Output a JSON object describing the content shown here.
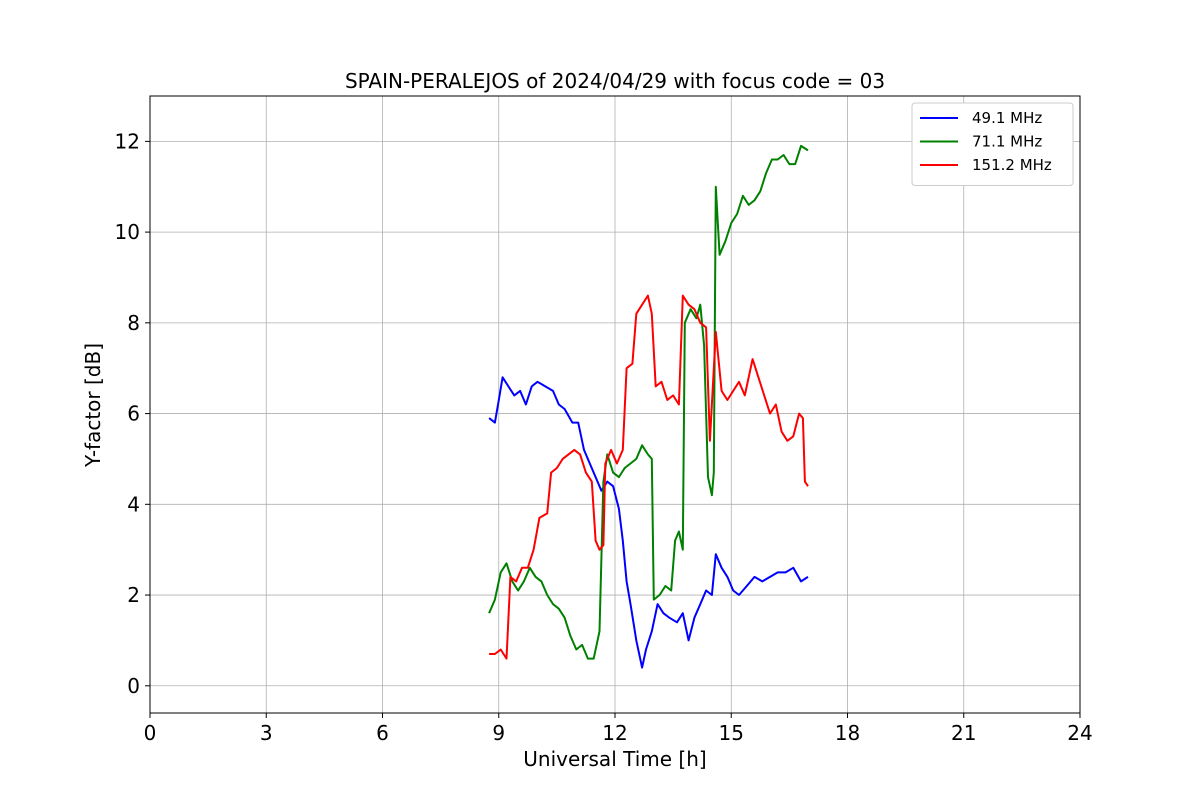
{
  "chart_data": {
    "type": "line",
    "title": "SPAIN-PERALEJOS of 2024/04/29 with focus code = 03",
    "xlabel": "Universal Time [h]",
    "ylabel": "Y-factor [dB]",
    "xlim": [
      0,
      24
    ],
    "ylim": [
      -0.6,
      13.0
    ],
    "xticks": [
      0,
      3,
      6,
      9,
      12,
      15,
      18,
      21,
      24
    ],
    "yticks": [
      0,
      2,
      4,
      6,
      8,
      10,
      12
    ],
    "grid": true,
    "legend_position": "top-right",
    "series": [
      {
        "name": "49.1 MHz",
        "color": "#0000ff",
        "points": [
          [
            8.75,
            5.9
          ],
          [
            8.9,
            5.8
          ],
          [
            9.0,
            6.3
          ],
          [
            9.1,
            6.8
          ],
          [
            9.25,
            6.6
          ],
          [
            9.4,
            6.4
          ],
          [
            9.55,
            6.5
          ],
          [
            9.7,
            6.2
          ],
          [
            9.85,
            6.6
          ],
          [
            10.0,
            6.7
          ],
          [
            10.2,
            6.6
          ],
          [
            10.4,
            6.5
          ],
          [
            10.55,
            6.2
          ],
          [
            10.7,
            6.1
          ],
          [
            10.9,
            5.8
          ],
          [
            11.05,
            5.8
          ],
          [
            11.2,
            5.2
          ],
          [
            11.35,
            4.9
          ],
          [
            11.5,
            4.6
          ],
          [
            11.65,
            4.3
          ],
          [
            11.8,
            4.5
          ],
          [
            11.95,
            4.4
          ],
          [
            12.1,
            3.9
          ],
          [
            12.2,
            3.2
          ],
          [
            12.3,
            2.3
          ],
          [
            12.4,
            1.8
          ],
          [
            12.55,
            1.0
          ],
          [
            12.7,
            0.4
          ],
          [
            12.8,
            0.8
          ],
          [
            12.95,
            1.2
          ],
          [
            13.1,
            1.8
          ],
          [
            13.25,
            1.6
          ],
          [
            13.4,
            1.5
          ],
          [
            13.6,
            1.4
          ],
          [
            13.75,
            1.6
          ],
          [
            13.9,
            1.0
          ],
          [
            14.05,
            1.5
          ],
          [
            14.2,
            1.8
          ],
          [
            14.35,
            2.1
          ],
          [
            14.5,
            2.0
          ],
          [
            14.6,
            2.9
          ],
          [
            14.75,
            2.6
          ],
          [
            14.9,
            2.4
          ],
          [
            15.05,
            2.1
          ],
          [
            15.2,
            2.0
          ],
          [
            15.4,
            2.2
          ],
          [
            15.6,
            2.4
          ],
          [
            15.8,
            2.3
          ],
          [
            16.0,
            2.4
          ],
          [
            16.2,
            2.5
          ],
          [
            16.4,
            2.5
          ],
          [
            16.6,
            2.6
          ],
          [
            16.8,
            2.3
          ],
          [
            16.98,
            2.4
          ]
        ]
      },
      {
        "name": "71.1 MHz",
        "color": "#008000",
        "points": [
          [
            8.75,
            1.6
          ],
          [
            8.9,
            1.9
          ],
          [
            9.05,
            2.5
          ],
          [
            9.2,
            2.7
          ],
          [
            9.35,
            2.3
          ],
          [
            9.5,
            2.1
          ],
          [
            9.65,
            2.3
          ],
          [
            9.8,
            2.6
          ],
          [
            9.95,
            2.4
          ],
          [
            10.1,
            2.3
          ],
          [
            10.25,
            2.0
          ],
          [
            10.4,
            1.8
          ],
          [
            10.55,
            1.7
          ],
          [
            10.7,
            1.5
          ],
          [
            10.85,
            1.1
          ],
          [
            11.0,
            0.8
          ],
          [
            11.15,
            0.9
          ],
          [
            11.3,
            0.6
          ],
          [
            11.45,
            0.6
          ],
          [
            11.6,
            1.2
          ],
          [
            11.7,
            4.5
          ],
          [
            11.8,
            5.1
          ],
          [
            11.95,
            4.7
          ],
          [
            12.1,
            4.6
          ],
          [
            12.25,
            4.8
          ],
          [
            12.4,
            4.9
          ],
          [
            12.55,
            5.0
          ],
          [
            12.7,
            5.3
          ],
          [
            12.85,
            5.1
          ],
          [
            12.95,
            5.0
          ],
          [
            13.0,
            1.9
          ],
          [
            13.15,
            2.0
          ],
          [
            13.3,
            2.2
          ],
          [
            13.45,
            2.1
          ],
          [
            13.55,
            3.2
          ],
          [
            13.65,
            3.4
          ],
          [
            13.75,
            3.0
          ],
          [
            13.8,
            8.0
          ],
          [
            13.95,
            8.3
          ],
          [
            14.1,
            8.1
          ],
          [
            14.2,
            8.4
          ],
          [
            14.3,
            7.5
          ],
          [
            14.4,
            4.6
          ],
          [
            14.5,
            4.2
          ],
          [
            14.55,
            4.7
          ],
          [
            14.6,
            11.0
          ],
          [
            14.7,
            9.5
          ],
          [
            14.85,
            9.8
          ],
          [
            15.0,
            10.2
          ],
          [
            15.15,
            10.4
          ],
          [
            15.3,
            10.8
          ],
          [
            15.45,
            10.6
          ],
          [
            15.6,
            10.7
          ],
          [
            15.75,
            10.9
          ],
          [
            15.9,
            11.3
          ],
          [
            16.05,
            11.6
          ],
          [
            16.2,
            11.6
          ],
          [
            16.35,
            11.7
          ],
          [
            16.5,
            11.5
          ],
          [
            16.65,
            11.5
          ],
          [
            16.8,
            11.9
          ],
          [
            16.98,
            11.8
          ]
        ]
      },
      {
        "name": "151.2 MHz",
        "color": "#ff0000",
        "points": [
          [
            8.75,
            0.7
          ],
          [
            8.9,
            0.7
          ],
          [
            9.05,
            0.8
          ],
          [
            9.2,
            0.6
          ],
          [
            9.3,
            2.4
          ],
          [
            9.45,
            2.3
          ],
          [
            9.6,
            2.6
          ],
          [
            9.75,
            2.6
          ],
          [
            9.9,
            3.0
          ],
          [
            10.05,
            3.7
          ],
          [
            10.25,
            3.8
          ],
          [
            10.35,
            4.7
          ],
          [
            10.5,
            4.8
          ],
          [
            10.65,
            5.0
          ],
          [
            10.8,
            5.1
          ],
          [
            10.95,
            5.2
          ],
          [
            11.1,
            5.1
          ],
          [
            11.25,
            4.7
          ],
          [
            11.4,
            4.5
          ],
          [
            11.5,
            3.2
          ],
          [
            11.6,
            3.0
          ],
          [
            11.7,
            3.1
          ],
          [
            11.75,
            4.9
          ],
          [
            11.9,
            5.2
          ],
          [
            12.05,
            4.9
          ],
          [
            12.2,
            5.2
          ],
          [
            12.3,
            7.0
          ],
          [
            12.45,
            7.1
          ],
          [
            12.55,
            8.2
          ],
          [
            12.7,
            8.4
          ],
          [
            12.85,
            8.6
          ],
          [
            12.95,
            8.2
          ],
          [
            13.05,
            6.6
          ],
          [
            13.2,
            6.7
          ],
          [
            13.35,
            6.3
          ],
          [
            13.5,
            6.4
          ],
          [
            13.65,
            6.2
          ],
          [
            13.75,
            8.6
          ],
          [
            13.9,
            8.4
          ],
          [
            14.05,
            8.3
          ],
          [
            14.2,
            8.0
          ],
          [
            14.35,
            7.9
          ],
          [
            14.45,
            5.4
          ],
          [
            14.6,
            7.8
          ],
          [
            14.75,
            6.5
          ],
          [
            14.9,
            6.3
          ],
          [
            15.05,
            6.5
          ],
          [
            15.2,
            6.7
          ],
          [
            15.35,
            6.4
          ],
          [
            15.55,
            7.2
          ],
          [
            15.7,
            6.8
          ],
          [
            15.85,
            6.4
          ],
          [
            16.0,
            6.0
          ],
          [
            16.15,
            6.2
          ],
          [
            16.3,
            5.6
          ],
          [
            16.45,
            5.4
          ],
          [
            16.6,
            5.5
          ],
          [
            16.75,
            6.0
          ],
          [
            16.85,
            5.9
          ],
          [
            16.9,
            4.5
          ],
          [
            16.98,
            4.4
          ]
        ]
      }
    ]
  }
}
